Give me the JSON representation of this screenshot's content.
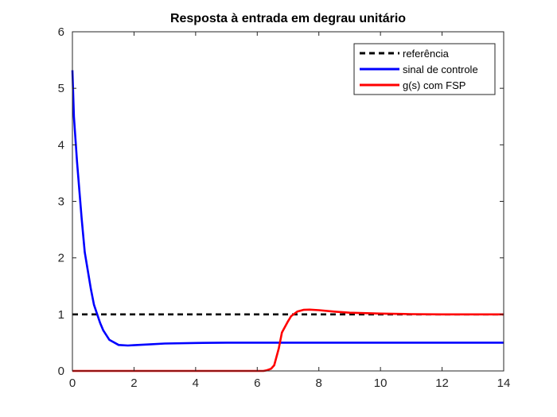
{
  "chart_data": {
    "type": "line",
    "title": "Resposta à entrada em degrau unitário",
    "xlabel": "",
    "ylabel": "",
    "xlim": [
      0,
      14
    ],
    "ylim": [
      0,
      6
    ],
    "x_ticks": [
      0,
      2,
      4,
      6,
      8,
      10,
      12,
      14
    ],
    "y_ticks": [
      0,
      1,
      2,
      3,
      4,
      5,
      6
    ],
    "grid": false,
    "legend_position": "top-right",
    "series": [
      {
        "name": "referência",
        "color": "#000000",
        "style": "dashed",
        "x": [
          0,
          14
        ],
        "y": [
          1,
          1
        ]
      },
      {
        "name": "sinal de controle",
        "color": "#0000ff",
        "style": "solid",
        "x": [
          0,
          0.05,
          0.15,
          0.3,
          0.4,
          0.6,
          0.7,
          0.9,
          1.0,
          1.2,
          1.5,
          1.8,
          2.0,
          2.5,
          3.0,
          4.0,
          5.0,
          6.0,
          8.0,
          10.0,
          12.0,
          14.0
        ],
        "y": [
          5.32,
          4.5,
          3.7,
          2.7,
          2.1,
          1.45,
          1.17,
          0.85,
          0.72,
          0.55,
          0.46,
          0.45,
          0.455,
          0.47,
          0.485,
          0.495,
          0.5,
          0.5,
          0.5,
          0.5,
          0.5,
          0.5
        ]
      },
      {
        "name": "g(s) com FSP",
        "color": "#ff0000",
        "style": "solid",
        "x": [
          0,
          6.2,
          6.3,
          6.45,
          6.55,
          6.7,
          6.8,
          7.0,
          7.1,
          7.3,
          7.5,
          7.7,
          8.0,
          8.5,
          9.0,
          10.0,
          11.0,
          12.0,
          14.0
        ],
        "y": [
          0,
          0,
          0.01,
          0.04,
          0.1,
          0.4,
          0.68,
          0.88,
          0.97,
          1.05,
          1.08,
          1.085,
          1.075,
          1.05,
          1.03,
          1.015,
          1.005,
          1.0,
          1.0
        ]
      }
    ]
  }
}
